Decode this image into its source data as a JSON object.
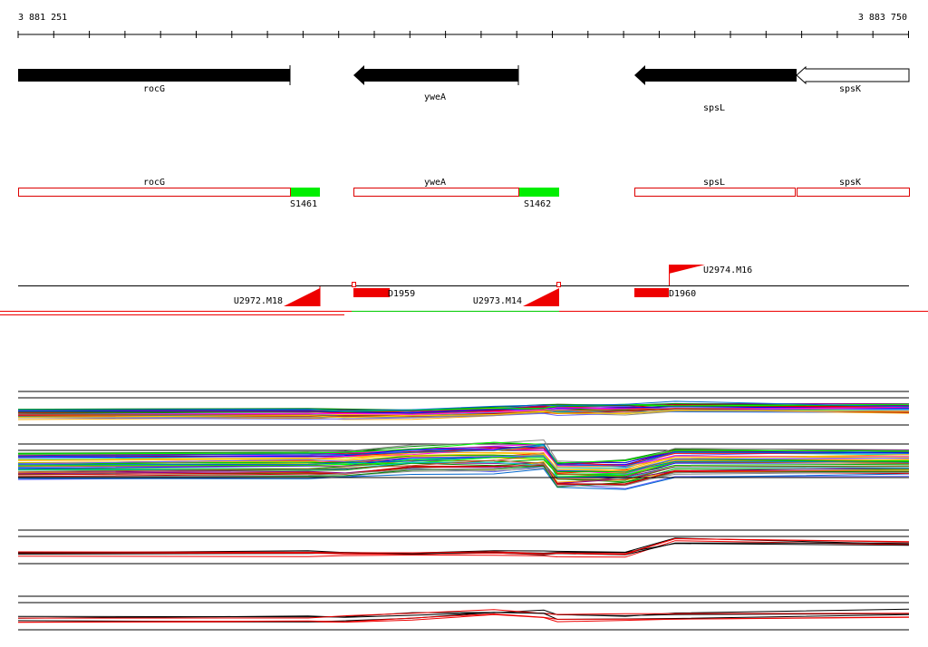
{
  "scale": {
    "start": "3 881 251",
    "end": "3 883 750"
  },
  "genes": [
    {
      "label": "rocG"
    },
    {
      "label": "yweA"
    },
    {
      "label": "spsL"
    },
    {
      "label": "spsK"
    }
  ],
  "annotation": [
    {
      "label": "rocG"
    },
    {
      "label": "yweA"
    },
    {
      "label": "spsL"
    },
    {
      "label": "spsK"
    }
  ],
  "segments": [
    {
      "label": "S1461"
    },
    {
      "label": "S1462"
    }
  ],
  "probes": [
    {
      "label": "U2972.M18"
    },
    {
      "label": "D1959"
    },
    {
      "label": "U2973.M14"
    },
    {
      "label": "D1960"
    },
    {
      "label": "U2974.M16"
    }
  ]
}
